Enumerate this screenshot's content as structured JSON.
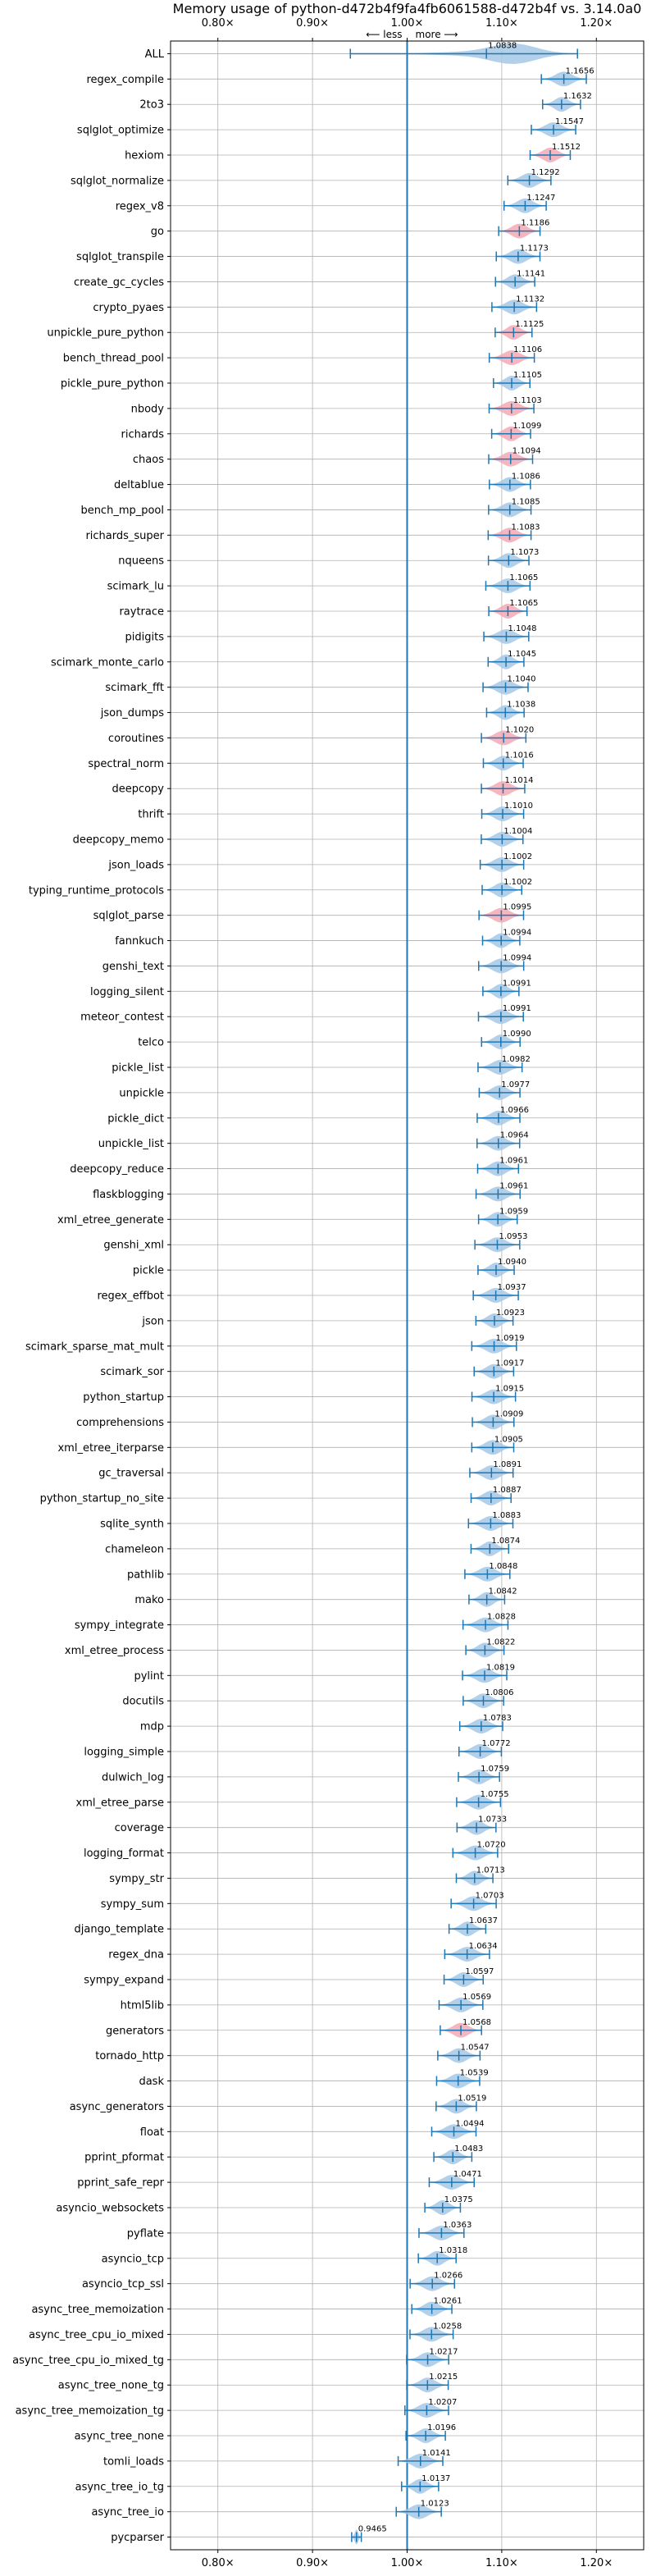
{
  "chart_data": {
    "type": "violin",
    "title": "Memory usage of python-d472b4f9fa4fb6061588-d472b4f vs. 3.14.0a0",
    "xlim": [
      0.75,
      1.25
    ],
    "xticks": [
      0.8,
      0.9,
      1.0,
      1.1,
      1.2
    ],
    "xtick_labels": [
      "0.80×",
      "0.90×",
      "1.00×",
      "1.10×",
      "1.20×"
    ],
    "reference_line": 1.0,
    "annotation_less": "⟵ less",
    "annotation_more": "more ⟶",
    "grid": true,
    "categories": [
      "ALL",
      "regex_compile",
      "2to3",
      "sqlglot_optimize",
      "hexiom",
      "sqlglot_normalize",
      "regex_v8",
      "go",
      "sqlglot_transpile",
      "create_gc_cycles",
      "crypto_pyaes",
      "unpickle_pure_python",
      "bench_thread_pool",
      "pickle_pure_python",
      "nbody",
      "richards",
      "chaos",
      "deltablue",
      "bench_mp_pool",
      "richards_super",
      "nqueens",
      "scimark_lu",
      "raytrace",
      "pidigits",
      "scimark_monte_carlo",
      "scimark_fft",
      "json_dumps",
      "coroutines",
      "spectral_norm",
      "deepcopy",
      "thrift",
      "deepcopy_memo",
      "json_loads",
      "typing_runtime_protocols",
      "sqlglot_parse",
      "fannkuch",
      "genshi_text",
      "logging_silent",
      "meteor_contest",
      "telco",
      "pickle_list",
      "unpickle",
      "pickle_dict",
      "unpickle_list",
      "deepcopy_reduce",
      "flaskblogging",
      "xml_etree_generate",
      "genshi_xml",
      "pickle",
      "regex_effbot",
      "json",
      "scimark_sparse_mat_mult",
      "scimark_sor",
      "python_startup",
      "comprehensions",
      "xml_etree_iterparse",
      "gc_traversal",
      "python_startup_no_site",
      "sqlite_synth",
      "chameleon",
      "pathlib",
      "mako",
      "sympy_integrate",
      "xml_etree_process",
      "pylint",
      "docutils",
      "mdp",
      "logging_simple",
      "dulwich_log",
      "xml_etree_parse",
      "coverage",
      "logging_format",
      "sympy_str",
      "sympy_sum",
      "django_template",
      "regex_dna",
      "sympy_expand",
      "html5lib",
      "generators",
      "tornado_http",
      "dask",
      "async_generators",
      "float",
      "pprint_pformat",
      "pprint_safe_repr",
      "asyncio_websockets",
      "pyflate",
      "asyncio_tcp",
      "asyncio_tcp_ssl",
      "async_tree_memoization",
      "async_tree_cpu_io_mixed",
      "async_tree_cpu_io_mixed_tg",
      "async_tree_none_tg",
      "async_tree_memoization_tg",
      "async_tree_none",
      "tomli_loads",
      "async_tree_io_tg",
      "async_tree_io",
      "pycparser"
    ],
    "values": [
      1.0838,
      1.1656,
      1.1632,
      1.1547,
      1.1512,
      1.1292,
      1.1247,
      1.1186,
      1.1173,
      1.1141,
      1.1132,
      1.1125,
      1.1106,
      1.1105,
      1.1103,
      1.1099,
      1.1094,
      1.1086,
      1.1085,
      1.1083,
      1.1073,
      1.1065,
      1.1065,
      1.1048,
      1.1045,
      1.104,
      1.1038,
      1.102,
      1.1016,
      1.1014,
      1.101,
      1.1004,
      1.1002,
      1.1002,
      1.0995,
      1.0994,
      1.0994,
      1.0991,
      1.0991,
      1.099,
      1.0982,
      1.0977,
      1.0966,
      1.0964,
      1.0961,
      1.0961,
      1.0959,
      1.0953,
      1.094,
      1.0937,
      1.0923,
      1.0919,
      1.0917,
      1.0915,
      1.0909,
      1.0905,
      1.0891,
      1.0887,
      1.0883,
      1.0874,
      1.0848,
      1.0842,
      1.0828,
      1.0822,
      1.0819,
      1.0806,
      1.0783,
      1.0772,
      1.0759,
      1.0755,
      1.0733,
      1.072,
      1.0713,
      1.0703,
      1.0637,
      1.0634,
      1.0597,
      1.0569,
      1.0568,
      1.0547,
      1.0539,
      1.0519,
      1.0494,
      1.0483,
      1.0471,
      1.0375,
      1.0363,
      1.0318,
      1.0266,
      1.0261,
      1.0258,
      1.0217,
      1.0215,
      1.0207,
      1.0196,
      1.0141,
      1.0137,
      1.0123,
      0.9465
    ],
    "value_labels": [
      "1.0838",
      "1.1656",
      "1.1632",
      "1.1547",
      "1.1512",
      "1.1292",
      "1.1247",
      "1.1186",
      "1.1173",
      "1.1141",
      "1.1132",
      "1.1125",
      "1.1106",
      "1.1105",
      "1.1103",
      "1.1099",
      "1.1094",
      "1.1086",
      "1.1085",
      "1.1083",
      "1.1073",
      "1.1065",
      "1.1065",
      "1.1048",
      "1.1045",
      "1.1040",
      "1.1038",
      "1.1020",
      "1.1016",
      "1.1014",
      "1.1010",
      "1.1004",
      "1.1002",
      "1.1002",
      "1.0995",
      "1.0994",
      "1.0994",
      "1.0991",
      "1.0991",
      "1.0990",
      "1.0982",
      "1.0977",
      "1.0966",
      "1.0964",
      "1.0961",
      "1.0961",
      "1.0959",
      "1.0953",
      "1.0940",
      "1.0937",
      "1.0923",
      "1.0919",
      "1.0917",
      "1.0915",
      "1.0909",
      "1.0905",
      "1.0891",
      "1.0887",
      "1.0883",
      "1.0874",
      "1.0848",
      "1.0842",
      "1.0828",
      "1.0822",
      "1.0819",
      "1.0806",
      "1.0783",
      "1.0772",
      "1.0759",
      "1.0755",
      "1.0733",
      "1.0720",
      "1.0713",
      "1.0703",
      "1.0637",
      "1.0634",
      "1.0597",
      "1.0569",
      "1.0568",
      "1.0547",
      "1.0539",
      "1.0519",
      "1.0494",
      "1.0483",
      "1.0471",
      "1.0375",
      "1.0363",
      "1.0318",
      "1.0266",
      "1.0261",
      "1.0258",
      "1.0217",
      "1.0215",
      "1.0207",
      "1.0196",
      "1.0141",
      "1.0137",
      "1.0123",
      "0.9465"
    ],
    "highlighted": [
      "hexiom",
      "go",
      "unpickle_pure_python",
      "bench_thread_pool",
      "nbody",
      "richards",
      "chaos",
      "richards_super",
      "raytrace",
      "coroutines",
      "deepcopy",
      "sqlglot_parse",
      "generators"
    ],
    "colors": {
      "violin": "#a6c8e6",
      "violin_highlight": "#f4a9b4",
      "bar": "#1f77b4",
      "reference": "#1f77b4",
      "grid": "#b0b0b0"
    }
  }
}
